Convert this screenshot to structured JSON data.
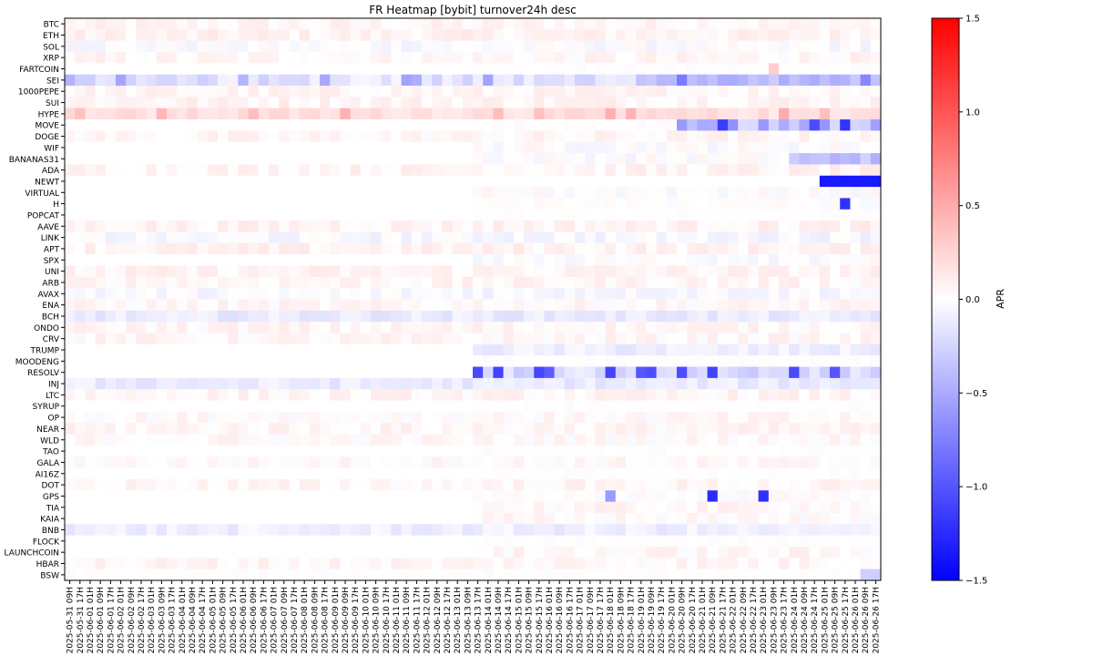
{
  "chart_data": {
    "type": "heatmap",
    "title": "FR Heatmap [bybit] turnover24h desc",
    "rows": [
      "BTC",
      "ETH",
      "SOL",
      "XRP",
      "FARTCOIN",
      "SEI",
      "1000PEPE",
      "SUI",
      "HYPE",
      "MOVE",
      "DOGE",
      "WIF",
      "BANANAS31",
      "ADA",
      "NEWT",
      "VIRTUAL",
      "H",
      "POPCAT",
      "AAVE",
      "LINK",
      "APT",
      "SPX",
      "UNI",
      "ARB",
      "AVAX",
      "ENA",
      "BCH",
      "ONDO",
      "CRV",
      "TRUMP",
      "MOODENG",
      "RESOLV",
      "INJ",
      "LTC",
      "SYRUP",
      "OP",
      "NEAR",
      "WLD",
      "TAO",
      "GALA",
      "AI16Z",
      "DOT",
      "GPS",
      "TIA",
      "KAIA",
      "BNB",
      "FLOCK",
      "LAUNCHCOIN",
      "HBAR",
      "BSW"
    ],
    "x_start": "2025-05-31 09H",
    "x_step_hours": 8,
    "x_count": 80,
    "xticks": [
      "2025-05-31 09H",
      "2025-05-31 17H",
      "2025-06-01 01H",
      "2025-06-01 09H",
      "2025-06-01 17H",
      "2025-06-02 01H",
      "2025-06-02 09H",
      "2025-06-02 17H",
      "2025-06-03 01H",
      "2025-06-03 09H",
      "2025-06-03 17H",
      "2025-06-04 01H",
      "2025-06-04 09H",
      "2025-06-04 17H",
      "2025-06-05 01H",
      "2025-06-05 09H",
      "2025-06-05 17H",
      "2025-06-06 01H",
      "2025-06-06 09H",
      "2025-06-06 17H",
      "2025-06-07 01H",
      "2025-06-07 09H",
      "2025-06-07 17H",
      "2025-06-08 01H",
      "2025-06-08 09H",
      "2025-06-08 17H",
      "2025-06-09 01H",
      "2025-06-09 09H",
      "2025-06-09 17H",
      "2025-06-10 01H",
      "2025-06-10 09H",
      "2025-06-10 17H",
      "2025-06-11 01H",
      "2025-06-11 09H",
      "2025-06-11 17H",
      "2025-06-12 01H",
      "2025-06-12 09H",
      "2025-06-12 17H",
      "2025-06-13 01H",
      "2025-06-13 09H",
      "2025-06-13 17H",
      "2025-06-14 01H",
      "2025-06-14 09H",
      "2025-06-14 17H",
      "2025-06-15 01H",
      "2025-06-15 09H",
      "2025-06-15 17H",
      "2025-06-16 01H",
      "2025-06-16 09H",
      "2025-06-16 17H",
      "2025-06-17 01H",
      "2025-06-17 09H",
      "2025-06-17 17H",
      "2025-06-18 01H",
      "2025-06-18 09H",
      "2025-06-18 17H",
      "2025-06-19 01H",
      "2025-06-19 09H",
      "2025-06-19 17H",
      "2025-06-20 01H",
      "2025-06-20 09H",
      "2025-06-20 17H",
      "2025-06-21 01H",
      "2025-06-21 09H",
      "2025-06-21 17H",
      "2025-06-22 01H",
      "2025-06-22 09H",
      "2025-06-22 17H",
      "2025-06-23 01H",
      "2025-06-23 09H",
      "2025-06-23 17H",
      "2025-06-24 01H",
      "2025-06-24 09H",
      "2025-06-24 17H",
      "2025-06-25 01H",
      "2025-06-25 09H",
      "2025-06-25 17H",
      "2025-06-26 01H",
      "2025-06-26 09H",
      "2025-06-26 17H"
    ],
    "colorbar": {
      "label": "APR",
      "cmap": "bwr",
      "vmin": -1.5,
      "vmax": 1.5,
      "ticks": [
        "1.5",
        "1.0",
        "0.5",
        "0.0",
        "−0.5",
        "−1.0",
        "−1.5"
      ]
    },
    "values": [
      "BTC: mostly slight positive (~0.03-0.08 APR), alternating white/light pink",
      "ETH: slight positive (~0.05-0.10)",
      "SOL: mixed slight negative and positive (~-0.1 to 0.1)",
      "XRP: slight positive/white",
      "FARTCOIN: near zero, one cell ~0.3 at 2025-06-23 01H",
      "SEI: mostly negative, range -0.1 to -0.7 after 2025-06-12",
      "1000PEPE: slight positive early, near zero late",
      "SUI: slight positive (~0.05-0.1)",
      "HYPE: positive (~0.1-0.4), peak ~0.45 near 2025-06-17 09H",
      "MOVE: near zero until 2025-06-20, then strongly negative down to ~-1.5",
      "DOGE: slight positive, occasional slight negative",
      "WIF: listed from 2025-06-13 17H, slight values",
      "BANANAS31: from 2025-06-13, near zero, late negative ~-0.5",
      "ADA: slight positive (~0.08)",
      "NEWT: from 2025-06-25 01H, strongly negative ~-1.3",
      "VIRTUAL: near zero, slight negative",
      "H: near zero, one cell ~-1.2 at 2025-06-25 17H",
      "POPCAT: near zero",
      "AAVE: slight positive (~0.08)",
      "LINK: mixed, slight negative to slight positive",
      "APT: slight positive",
      "SPX: near zero, some slight negative late",
      "UNI: slight positive",
      "ARB: slight positive, occasional negative",
      "AVAX: slight negative/positive mix",
      "ENA: slight positive",
      "BCH: slight negative (~-0.2) throughout",
      "ONDO: slight positive",
      "CRV: slight positive with some negatives",
      "TRUMP: from 2025-06-13 17H, slight negatives",
      "MOODENG: near zero",
      "RESOLV: from 2025-06-13 17H, negative, down to ~-1.3",
      "INJ: slight negative (~-0.2)",
      "LTC: slight positive",
      "SYRUP: near zero",
      "OP: slight positive/negative mix",
      "NEAR: slight positive",
      "WLD: slight positive, some negatives",
      "TAO: near zero",
      "GALA: slight positive, some negatives",
      "AI16Z: near zero",
      "DOT: slight positive",
      "GPS: near zero, strong negative (~-1.2) at 2025-06-21 01H and 2025-06-22 17H",
      "TIA: slight positive",
      "KAIA: slight positive/negative",
      "BNB: slight negative (~-0.15)",
      "FLOCK: near zero",
      "LAUNCHCOIN: slight positive",
      "HBAR: slight positive",
      "BSW: near zero, last cells ~-0.3"
    ]
  }
}
